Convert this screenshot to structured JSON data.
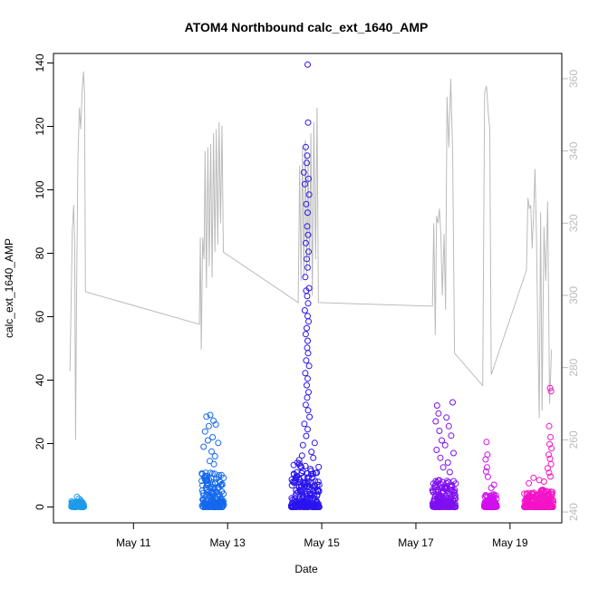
{
  "chart_data": {
    "type": "scatter",
    "title": "ATOM4 Northbound calc_ext_1640_AMP",
    "xlabel": "Date",
    "ylabel": "calc_ext_1640_AMP",
    "x_units": "days since May 10",
    "xlim": [
      -0.7,
      10.1
    ],
    "ylim": [
      -5,
      143
    ],
    "y2lim": [
      237,
      367
    ],
    "x_ticks": [
      {
        "value": 1,
        "label": "May 11"
      },
      {
        "value": 3,
        "label": "May 13"
      },
      {
        "value": 5,
        "label": "May 15"
      },
      {
        "value": 7,
        "label": "May 17"
      },
      {
        "value": 9,
        "label": "May 19"
      }
    ],
    "y_ticks": [
      0,
      20,
      40,
      60,
      80,
      100,
      120,
      140
    ],
    "y2_ticks": [
      240,
      260,
      280,
      300,
      320,
      340,
      360
    ],
    "clusters": [
      {
        "name": "May 10",
        "color": "#1e9bea",
        "x_start": -0.32,
        "x_end": -0.05,
        "typical_max": 1.8,
        "outliers": [
          [
            -0.2,
            3.2
          ],
          [
            -0.16,
            2.6
          ],
          [
            -0.12,
            2.2
          ]
        ]
      },
      {
        "name": "May 12",
        "color": "#1468ec",
        "x_start": 2.45,
        "x_end": 2.92,
        "typical_max": 11,
        "outliers": [
          [
            2.55,
            28.5
          ],
          [
            2.63,
            29.0
          ],
          [
            2.7,
            27.2
          ],
          [
            2.6,
            25.5
          ],
          [
            2.52,
            23.8
          ],
          [
            2.75,
            26.0
          ],
          [
            2.68,
            22.0
          ],
          [
            2.58,
            21.0
          ],
          [
            2.8,
            20.2
          ],
          [
            2.49,
            19.0
          ],
          [
            2.66,
            17.5
          ],
          [
            2.73,
            16.0
          ],
          [
            2.62,
            14.5
          ],
          [
            2.71,
            13.5
          ]
        ]
      },
      {
        "name": "May 14",
        "color": "#2a14ee",
        "x_start": 4.35,
        "x_end": 4.95,
        "typical_max": 14,
        "outliers": [
          [
            4.7,
            139.5
          ],
          [
            4.71,
            121.2
          ],
          [
            4.66,
            113.5
          ],
          [
            4.69,
            110.8
          ],
          [
            4.68,
            108.5
          ],
          [
            4.62,
            105.5
          ],
          [
            4.72,
            103.5
          ],
          [
            4.64,
            101.8
          ],
          [
            4.73,
            98.5
          ],
          [
            4.67,
            95.5
          ],
          [
            4.7,
            92.8
          ],
          [
            4.69,
            88.5
          ],
          [
            4.71,
            85.8
          ],
          [
            4.66,
            83.2
          ],
          [
            4.72,
            80.5
          ],
          [
            4.68,
            78.2
          ],
          [
            4.7,
            75.5
          ],
          [
            4.65,
            72.5
          ],
          [
            4.73,
            69.0
          ],
          [
            4.67,
            68.2
          ],
          [
            4.69,
            66.5
          ],
          [
            4.71,
            64.2
          ],
          [
            4.64,
            62.0
          ],
          [
            4.7,
            60.2
          ],
          [
            4.72,
            58.5
          ],
          [
            4.68,
            56.4
          ],
          [
            4.66,
            54.5
          ],
          [
            4.7,
            52.4
          ],
          [
            4.69,
            50.2
          ],
          [
            4.71,
            48.5
          ],
          [
            4.67,
            46.2
          ],
          [
            4.73,
            44.5
          ],
          [
            4.65,
            42.2
          ],
          [
            4.7,
            40.5
          ],
          [
            4.68,
            38.4
          ],
          [
            4.72,
            36.2
          ],
          [
            4.69,
            34.5
          ],
          [
            4.66,
            32.2
          ],
          [
            4.71,
            30.5
          ],
          [
            4.74,
            28.4
          ],
          [
            4.63,
            26.2
          ],
          [
            4.7,
            24.5
          ],
          [
            4.67,
            22.4
          ],
          [
            4.85,
            20.2
          ],
          [
            4.6,
            19.5
          ],
          [
            4.78,
            17.4
          ],
          [
            4.58,
            16.2
          ],
          [
            4.82,
            15.5
          ],
          [
            4.52,
            14.8
          ]
        ]
      },
      {
        "name": "May 17",
        "color": "#7f0ff0",
        "x_start": 7.35,
        "x_end": 7.85,
        "typical_max": 9,
        "outliers": [
          [
            7.45,
            32.0
          ],
          [
            7.78,
            33.0
          ],
          [
            7.48,
            29.5
          ],
          [
            7.65,
            28.2
          ],
          [
            7.42,
            27.0
          ],
          [
            7.7,
            25.5
          ],
          [
            7.5,
            24.0
          ],
          [
            7.75,
            22.5
          ],
          [
            7.55,
            21.0
          ],
          [
            7.62,
            19.5
          ],
          [
            7.44,
            18.0
          ],
          [
            7.8,
            17.0
          ],
          [
            7.52,
            15.5
          ],
          [
            7.68,
            14.0
          ],
          [
            7.58,
            12.5
          ],
          [
            7.72,
            11.0
          ]
        ]
      },
      {
        "name": "May 18",
        "color": "#d10fef",
        "x_start": 8.45,
        "x_end": 8.72,
        "typical_max": 4,
        "outliers": [
          [
            8.5,
            20.5
          ],
          [
            8.52,
            16.5
          ],
          [
            8.48,
            15.0
          ],
          [
            8.51,
            12.5
          ],
          [
            8.49,
            11.2
          ],
          [
            8.53,
            9.5
          ],
          [
            8.66,
            7.0
          ],
          [
            8.6,
            6.0
          ]
        ]
      },
      {
        "name": "May 19",
        "color": "#f314c7",
        "x_start": 9.3,
        "x_end": 9.92,
        "typical_max": 5.5,
        "outliers": [
          [
            9.85,
            37.5
          ],
          [
            9.87,
            36.5
          ],
          [
            9.83,
            25.5
          ],
          [
            9.86,
            22.0
          ],
          [
            9.84,
            19.8
          ],
          [
            9.88,
            18.5
          ],
          [
            9.82,
            16.5
          ],
          [
            9.85,
            15.2
          ],
          [
            9.87,
            13.5
          ],
          [
            9.8,
            12.2
          ],
          [
            9.83,
            10.8
          ],
          [
            9.86,
            9.6
          ],
          [
            9.5,
            9.2
          ],
          [
            9.62,
            8.5
          ],
          [
            9.72,
            8.0
          ],
          [
            9.4,
            7.5
          ]
        ]
      }
    ],
    "secondary_series": {
      "name": "right-axis trace",
      "color": "#bbbbbb",
      "points": [
        [
          -0.35,
          279
        ],
        [
          -0.3,
          318
        ],
        [
          -0.27,
          325
        ],
        [
          -0.25,
          314
        ],
        [
          -0.23,
          260
        ],
        [
          -0.21,
          300
        ],
        [
          -0.18,
          338
        ],
        [
          -0.15,
          352
        ],
        [
          -0.12,
          346
        ],
        [
          -0.09,
          357
        ],
        [
          -0.06,
          362
        ],
        [
          -0.04,
          356
        ],
        [
          -0.02,
          301
        ],
        [
          2.4,
          292
        ],
        [
          2.42,
          316
        ],
        [
          2.44,
          285
        ],
        [
          2.47,
          316
        ],
        [
          2.5,
          310
        ],
        [
          2.52,
          340
        ],
        [
          2.55,
          302
        ],
        [
          2.58,
          341
        ],
        [
          2.61,
          308
        ],
        [
          2.64,
          342
        ],
        [
          2.67,
          305
        ],
        [
          2.7,
          345
        ],
        [
          2.73,
          312
        ],
        [
          2.76,
          346
        ],
        [
          2.79,
          314
        ],
        [
          2.82,
          348
        ],
        [
          2.85,
          320
        ],
        [
          2.88,
          347
        ],
        [
          2.91,
          312
        ],
        [
          4.5,
          298
        ],
        [
          4.53,
          336
        ],
        [
          4.56,
          304
        ],
        [
          4.59,
          341
        ],
        [
          4.62,
          305
        ],
        [
          4.65,
          343
        ],
        [
          4.68,
          306
        ],
        [
          4.71,
          338
        ],
        [
          4.74,
          308
        ],
        [
          4.77,
          345
        ],
        [
          4.8,
          300
        ],
        [
          4.83,
          348
        ],
        [
          4.87,
          310
        ],
        [
          4.9,
          352
        ],
        [
          4.93,
          298
        ],
        [
          7.35,
          297
        ],
        [
          7.38,
          320
        ],
        [
          7.41,
          289
        ],
        [
          7.44,
          322
        ],
        [
          7.47,
          320
        ],
        [
          7.5,
          324
        ],
        [
          7.53,
          317
        ],
        [
          7.56,
          300
        ],
        [
          7.6,
          317
        ],
        [
          7.63,
          296
        ],
        [
          7.66,
          355
        ],
        [
          7.7,
          341
        ],
        [
          7.74,
          360
        ],
        [
          7.78,
          340
        ],
        [
          7.82,
          284
        ],
        [
          8.42,
          275
        ],
        [
          8.46,
          356
        ],
        [
          8.5,
          358
        ],
        [
          8.54,
          350
        ],
        [
          8.57,
          346
        ],
        [
          8.6,
          278
        ],
        [
          9.35,
          307
        ],
        [
          9.38,
          327
        ],
        [
          9.41,
          324
        ],
        [
          9.44,
          325
        ],
        [
          9.47,
          313
        ],
        [
          9.5,
          322
        ],
        [
          9.53,
          335
        ],
        [
          9.56,
          317
        ],
        [
          9.59,
          290
        ],
        [
          9.62,
          266
        ],
        [
          9.65,
          323
        ],
        [
          9.68,
          268
        ],
        [
          9.72,
          319
        ],
        [
          9.76,
          304
        ],
        [
          9.8,
          326
        ],
        [
          9.84,
          270
        ],
        [
          9.88,
          285
        ]
      ]
    }
  }
}
